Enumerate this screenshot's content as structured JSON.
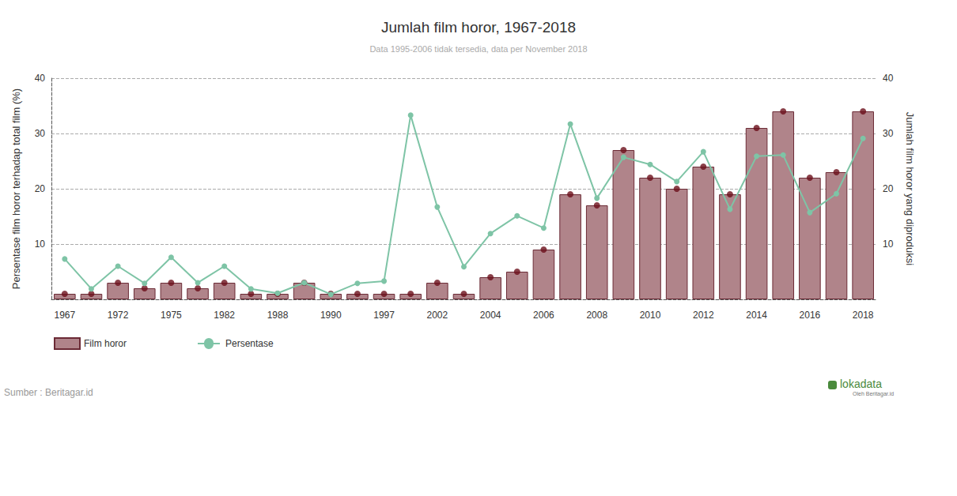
{
  "chart_data": {
    "type": "bar",
    "title": "Jumlah film horor, 1967-2018",
    "subtitle": "Data 1995-2006 tidak tersedia, data per November 2018",
    "y_label": "Persentase film horor terhadap total film (%)",
    "y2_label": "Jumlah film horor yang diproduksi",
    "source": "Sumber : Beritagar.id",
    "logo": "lokadata",
    "logo_sub": "Oleh Beritagar.id",
    "categories": [
      "1967",
      null,
      "1972",
      null,
      "1975",
      null,
      "1982",
      null,
      "1988",
      null,
      "1990",
      null,
      "1997",
      null,
      "2002",
      null,
      "2004",
      null,
      "2006",
      null,
      "2008",
      null,
      "2010",
      null,
      "2012",
      null,
      "2014",
      null,
      "2016",
      null,
      "2018"
    ],
    "series": [
      {
        "name": "Film horor",
        "type": "bar",
        "axis": "y2",
        "color": "#b0848a",
        "marker": "circle",
        "values": [
          1,
          1,
          3,
          2,
          3,
          2,
          3,
          1,
          1,
          3,
          1,
          1,
          1,
          1,
          3,
          1,
          4,
          5,
          9,
          19,
          17,
          27,
          22,
          20,
          24,
          19,
          31,
          34,
          22,
          23,
          34
        ]
      },
      {
        "name": "Persentase",
        "type": "line",
        "axis": "y",
        "color": "#7ec4a6",
        "marker": "circle",
        "line_style": "solid",
        "values": [
          7.3,
          1.9,
          6.0,
          2.9,
          7.6,
          3.0,
          6.0,
          1.9,
          1.1,
          3.0,
          0.9,
          2.9,
          3.3,
          33.3,
          16.7,
          5.9,
          11.9,
          15.1,
          12.9,
          31.7,
          18.3,
          25.7,
          24.4,
          21.3,
          26.7,
          16.3,
          25.9,
          26.1,
          15.7,
          19.1,
          29.1
        ]
      }
    ],
    "ylim": [
      0,
      40
    ],
    "yticks": [
      10,
      20,
      30,
      40
    ],
    "y2lim": [
      0,
      40
    ],
    "y2ticks": [
      10,
      20,
      30,
      40
    ],
    "grid": true,
    "legend": "bottom-left"
  }
}
